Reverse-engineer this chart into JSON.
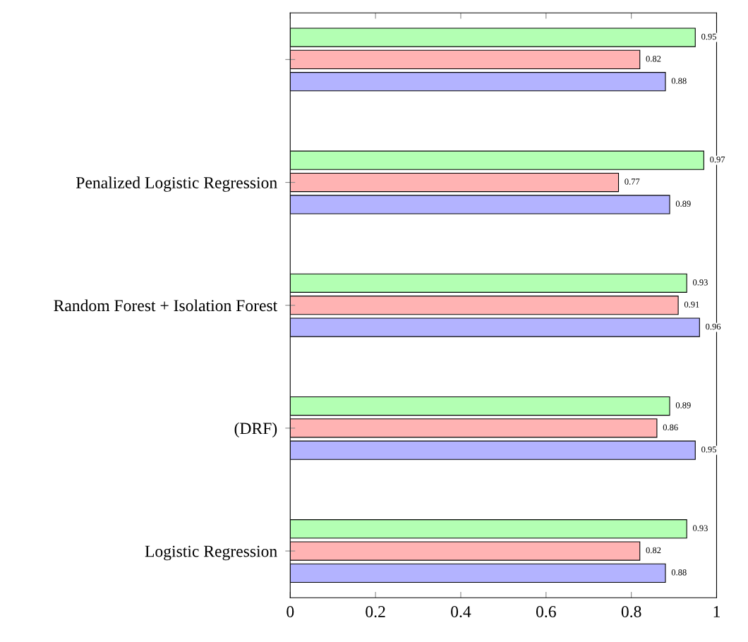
{
  "chart_data": {
    "type": "bar",
    "orientation": "horizontal",
    "categories": [
      null,
      "Penalized Logistic Regression",
      "Random Forest + Isolation Forest",
      "(DRF)",
      "Logistic Regression"
    ],
    "series": [
      {
        "color": "#b3ffb3",
        "values": [
          0.95,
          0.97,
          0.93,
          0.89,
          0.93
        ]
      },
      {
        "color": "#ffb3b3",
        "values": [
          0.82,
          0.77,
          0.91,
          0.86,
          0.82
        ]
      },
      {
        "color": "#b3b3ff",
        "values": [
          0.88,
          0.89,
          0.96,
          0.95,
          0.88
        ]
      }
    ],
    "xlim": [
      0,
      1
    ],
    "xticks": [
      0,
      0.2,
      0.4,
      0.6,
      0.8,
      1
    ],
    "data_labels": true,
    "grid": false,
    "legend": false
  }
}
